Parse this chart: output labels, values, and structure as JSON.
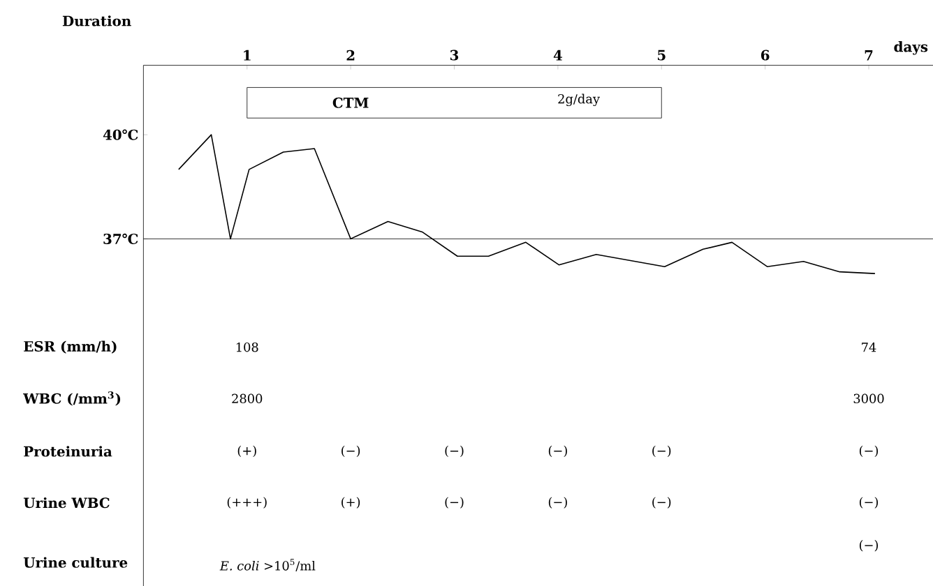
{
  "chart_data": {
    "type": "line",
    "xlabel": "days",
    "color": "#000000",
    "x": [
      0.34,
      0.655,
      0.84,
      1.02,
      1.35,
      1.65,
      2.0,
      2.36,
      2.69,
      3.03,
      3.33,
      3.69,
      4.01,
      4.37,
      5.03,
      5.4,
      5.68,
      6.02,
      6.37,
      6.72,
      7.06
    ],
    "values": [
      39.0,
      40.0,
      37.0,
      39.0,
      39.5,
      39.6,
      37.0,
      37.5,
      37.2,
      36.5,
      36.5,
      36.9,
      36.25,
      36.55,
      36.2,
      36.7,
      36.9,
      36.2,
      36.35,
      36.05,
      36.0
    ],
    "xlim": [
      0,
      7.62
    ],
    "xticks": [
      1,
      2,
      3,
      4,
      5,
      6,
      7
    ],
    "ylim": [
      27,
      42
    ],
    "yticks": [
      {
        "value": 40,
        "label": "40℃"
      },
      {
        "value": 37,
        "label": "37℃"
      }
    ],
    "ref_lines": [
      {
        "axis": "y",
        "value": 37
      }
    ],
    "annotations": [
      "CTM",
      "2g/day",
      "Duration",
      "ESR (mm/h)",
      "WBC (/mm$^{3}$)",
      "Proteinuria",
      "Urine WBC",
      "Urine culture",
      "108",
      "74",
      "2800",
      "3000",
      "(+)",
      "(−)",
      "(−)",
      "(−)",
      "(−)",
      "(−)",
      "(+++)",
      "(+)",
      "(−)",
      "(−)",
      "(−)",
      "(−)",
      "*E. coli* >10$^{5}$/ml",
      "(−)"
    ]
  }
}
